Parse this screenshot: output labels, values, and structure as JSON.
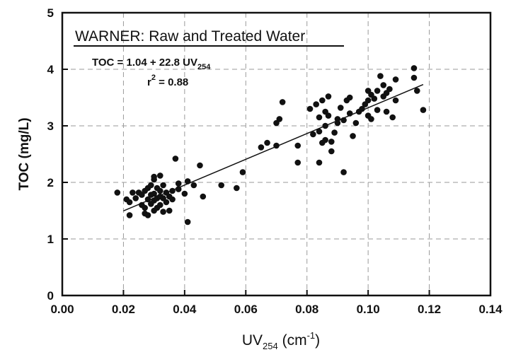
{
  "chart_data": {
    "type": "scatter",
    "title": "WARNER:  Raw and Treated Water",
    "equation": {
      "prefix": "TOC = 1.04 + 22.8 UV",
      "subscript": "254",
      "r2_base": "r",
      "r2_sup": "2",
      "r2_value": " = 0.88"
    },
    "xlabel": {
      "base": "UV",
      "sub": "254",
      "unit_open": " (cm",
      "sup": "-1",
      "unit_close": ")"
    },
    "ylabel": "TOC (mg/L)",
    "xlim": [
      0,
      0.14
    ],
    "ylim": [
      0,
      5
    ],
    "x_ticks": [
      "0.00",
      "0.02",
      "0.04",
      "0.06",
      "0.08",
      "0.10",
      "0.12",
      "0.14"
    ],
    "y_ticks": [
      "0",
      "1",
      "2",
      "3",
      "4",
      "5"
    ],
    "grid": true,
    "fit_line": {
      "intercept": 1.04,
      "slope": 22.8,
      "x_range": [
        0.02,
        0.118
      ]
    },
    "points": [
      [
        0.018,
        1.82
      ],
      [
        0.021,
        1.7
      ],
      [
        0.022,
        1.42
      ],
      [
        0.022,
        1.65
      ],
      [
        0.023,
        1.82
      ],
      [
        0.024,
        1.72
      ],
      [
        0.025,
        1.82
      ],
      [
        0.026,
        1.6
      ],
      [
        0.026,
        1.78
      ],
      [
        0.027,
        1.55
      ],
      [
        0.027,
        1.45
      ],
      [
        0.027,
        1.85
      ],
      [
        0.028,
        1.42
      ],
      [
        0.028,
        1.7
      ],
      [
        0.028,
        1.9
      ],
      [
        0.029,
        1.95
      ],
      [
        0.029,
        1.62
      ],
      [
        0.029,
        1.78
      ],
      [
        0.03,
        1.5
      ],
      [
        0.03,
        1.68
      ],
      [
        0.03,
        1.8
      ],
      [
        0.03,
        2.05
      ],
      [
        0.03,
        2.1
      ],
      [
        0.031,
        1.55
      ],
      [
        0.031,
        1.72
      ],
      [
        0.031,
        1.9
      ],
      [
        0.032,
        1.6
      ],
      [
        0.032,
        1.75
      ],
      [
        0.032,
        2.12
      ],
      [
        0.032,
        1.85
      ],
      [
        0.033,
        1.72
      ],
      [
        0.033,
        1.95
      ],
      [
        0.033,
        1.48
      ],
      [
        0.034,
        1.65
      ],
      [
        0.034,
        1.82
      ],
      [
        0.035,
        1.75
      ],
      [
        0.035,
        1.5
      ],
      [
        0.036,
        1.7
      ],
      [
        0.036,
        1.85
      ],
      [
        0.037,
        2.42
      ],
      [
        0.038,
        1.98
      ],
      [
        0.038,
        1.88
      ],
      [
        0.04,
        1.8
      ],
      [
        0.041,
        2.02
      ],
      [
        0.041,
        1.3
      ],
      [
        0.043,
        1.95
      ],
      [
        0.045,
        2.3
      ],
      [
        0.046,
        1.75
      ],
      [
        0.052,
        1.95
      ],
      [
        0.057,
        1.9
      ],
      [
        0.059,
        2.18
      ],
      [
        0.065,
        2.62
      ],
      [
        0.067,
        2.7
      ],
      [
        0.07,
        2.65
      ],
      [
        0.07,
        3.05
      ],
      [
        0.071,
        3.12
      ],
      [
        0.072,
        3.42
      ],
      [
        0.077,
        2.65
      ],
      [
        0.077,
        2.35
      ],
      [
        0.081,
        3.3
      ],
      [
        0.082,
        2.85
      ],
      [
        0.083,
        3.38
      ],
      [
        0.084,
        2.35
      ],
      [
        0.084,
        2.9
      ],
      [
        0.084,
        3.15
      ],
      [
        0.085,
        2.7
      ],
      [
        0.085,
        3.45
      ],
      [
        0.086,
        2.75
      ],
      [
        0.086,
        3.0
      ],
      [
        0.086,
        3.25
      ],
      [
        0.087,
        3.52
      ],
      [
        0.087,
        3.18
      ],
      [
        0.088,
        2.55
      ],
      [
        0.088,
        2.72
      ],
      [
        0.089,
        2.88
      ],
      [
        0.09,
        3.05
      ],
      [
        0.09,
        3.12
      ],
      [
        0.091,
        3.32
      ],
      [
        0.092,
        3.1
      ],
      [
        0.092,
        2.18
      ],
      [
        0.093,
        3.45
      ],
      [
        0.094,
        3.5
      ],
      [
        0.094,
        3.22
      ],
      [
        0.095,
        2.82
      ],
      [
        0.096,
        3.05
      ],
      [
        0.097,
        3.25
      ],
      [
        0.098,
        3.3
      ],
      [
        0.099,
        3.38
      ],
      [
        0.1,
        3.18
      ],
      [
        0.1,
        3.45
      ],
      [
        0.1,
        3.62
      ],
      [
        0.101,
        3.55
      ],
      [
        0.101,
        3.12
      ],
      [
        0.102,
        3.48
      ],
      [
        0.103,
        3.62
      ],
      [
        0.103,
        3.28
      ],
      [
        0.104,
        3.88
      ],
      [
        0.105,
        3.72
      ],
      [
        0.105,
        3.52
      ],
      [
        0.106,
        3.25
      ],
      [
        0.106,
        3.58
      ],
      [
        0.107,
        3.65
      ],
      [
        0.108,
        3.15
      ],
      [
        0.109,
        3.45
      ],
      [
        0.109,
        3.82
      ],
      [
        0.115,
        4.02
      ],
      [
        0.115,
        3.85
      ],
      [
        0.116,
        3.62
      ],
      [
        0.118,
        3.28
      ]
    ]
  }
}
